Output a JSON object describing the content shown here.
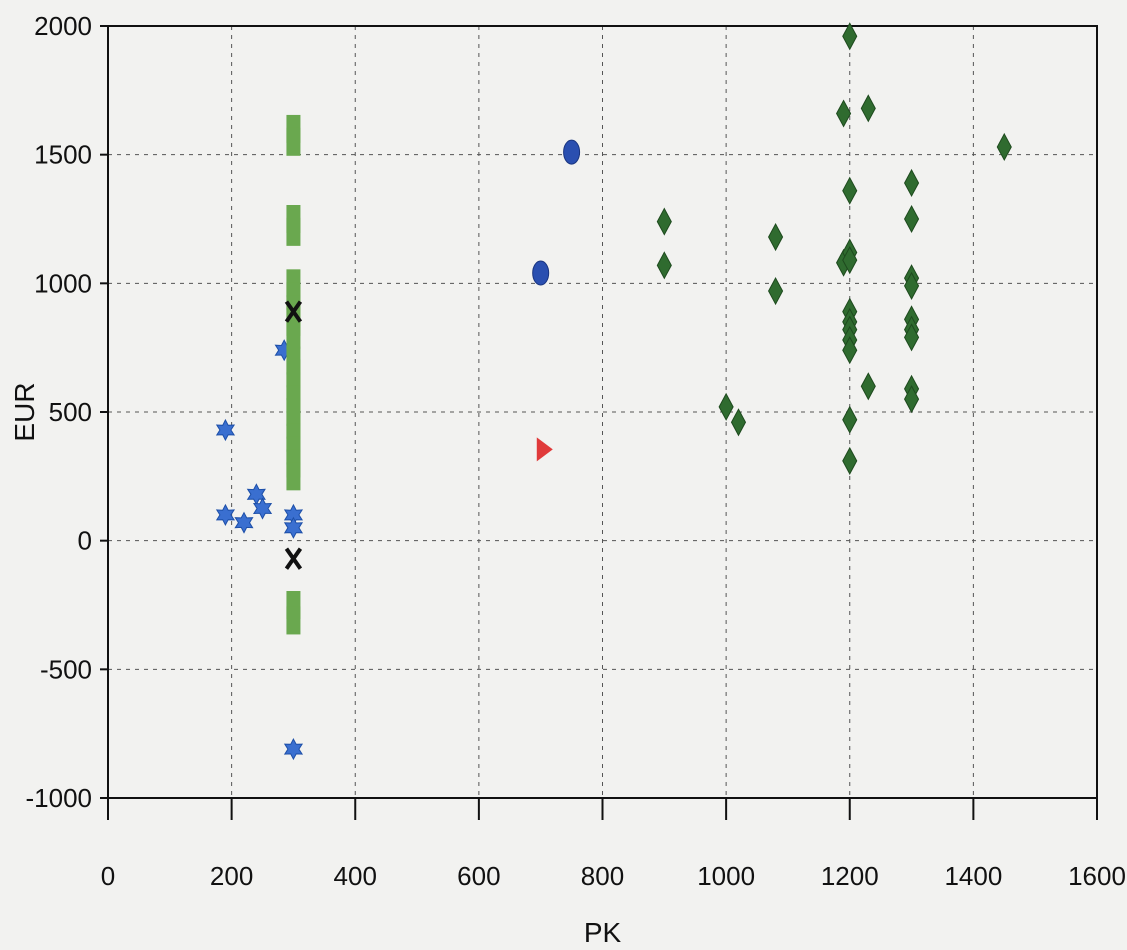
{
  "chart_data": {
    "type": "scatter",
    "xlabel": "PK",
    "ylabel": "EUR",
    "xlim": [
      0,
      1600
    ],
    "ylim": [
      -1000,
      2000
    ],
    "xticks": [
      0,
      200,
      400,
      600,
      800,
      1000,
      1200,
      1400,
      1600
    ],
    "yticks": [
      -1000,
      -500,
      0,
      500,
      1000,
      1500,
      2000
    ],
    "xtick_labels": [
      "0",
      "200",
      "400",
      "600",
      "800",
      "1000",
      "1200",
      "1400",
      "1600"
    ],
    "ytick_labels": [
      "-1000",
      "-500",
      "0",
      "500",
      "1000",
      "1500",
      "2000"
    ],
    "grid": true,
    "grid_style": "dashed",
    "series": [
      {
        "marker": "star",
        "color": "#3a6fd0",
        "points": [
          [
            190,
            430
          ],
          [
            190,
            100
          ],
          [
            220,
            70
          ],
          [
            240,
            180
          ],
          [
            250,
            125
          ],
          [
            285,
            740
          ],
          [
            300,
            100
          ],
          [
            300,
            50
          ],
          [
            300,
            -810
          ]
        ]
      },
      {
        "marker": "square",
        "color": "#6aa84f",
        "points": [
          [
            300,
            1600
          ],
          [
            300,
            1550
          ],
          [
            300,
            1250
          ],
          [
            300,
            1200
          ],
          [
            300,
            1000
          ],
          [
            300,
            950
          ],
          [
            300,
            900
          ],
          [
            300,
            850
          ],
          [
            300,
            800
          ],
          [
            300,
            700
          ],
          [
            300,
            650
          ],
          [
            300,
            600
          ],
          [
            300,
            550
          ],
          [
            300,
            500
          ],
          [
            300,
            450
          ],
          [
            300,
            400
          ],
          [
            300,
            350
          ],
          [
            300,
            300
          ],
          [
            300,
            250
          ],
          [
            300,
            -250
          ],
          [
            300,
            -310
          ]
        ]
      },
      {
        "marker": "x",
        "color": "#111111",
        "points": [
          [
            300,
            890
          ],
          [
            300,
            -70
          ]
        ]
      },
      {
        "marker": "circle",
        "color": "#2a4fb0",
        "points": [
          [
            750,
            1510
          ],
          [
            700,
            1040
          ]
        ]
      },
      {
        "marker": "triangle-right",
        "color": "#e03a3a",
        "points": [
          [
            705,
            355
          ]
        ]
      },
      {
        "marker": "diamond",
        "color": "#2f6b2f",
        "points": [
          [
            900,
            1240
          ],
          [
            900,
            1070
          ],
          [
            1000,
            520
          ],
          [
            1020,
            460
          ],
          [
            1080,
            1180
          ],
          [
            1080,
            970
          ],
          [
            1190,
            1660
          ],
          [
            1190,
            1080
          ],
          [
            1200,
            1960
          ],
          [
            1200,
            1360
          ],
          [
            1200,
            1120
          ],
          [
            1200,
            1090
          ],
          [
            1200,
            890
          ],
          [
            1200,
            850
          ],
          [
            1200,
            820
          ],
          [
            1200,
            780
          ],
          [
            1200,
            740
          ],
          [
            1200,
            470
          ],
          [
            1200,
            310
          ],
          [
            1230,
            1680
          ],
          [
            1230,
            600
          ],
          [
            1300,
            1390
          ],
          [
            1300,
            1250
          ],
          [
            1300,
            1020
          ],
          [
            1300,
            990
          ],
          [
            1300,
            860
          ],
          [
            1300,
            820
          ],
          [
            1300,
            790
          ],
          [
            1300,
            590
          ],
          [
            1300,
            550
          ],
          [
            1450,
            1530
          ]
        ]
      }
    ]
  }
}
